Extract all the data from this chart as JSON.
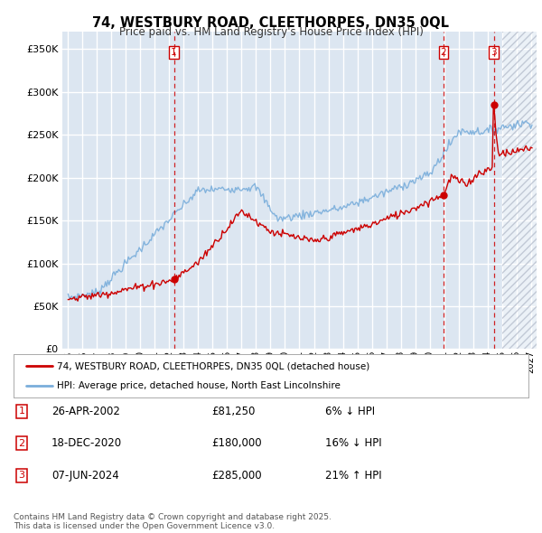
{
  "title_line1": "74, WESTBURY ROAD, CLEETHORPES, DN35 0QL",
  "title_line2": "Price paid vs. HM Land Registry's House Price Index (HPI)",
  "legend_label_red": "74, WESTBURY ROAD, CLEETHORPES, DN35 0QL (detached house)",
  "legend_label_blue": "HPI: Average price, detached house, North East Lincolnshire",
  "footer": "Contains HM Land Registry data © Crown copyright and database right 2025.\nThis data is licensed under the Open Government Licence v3.0.",
  "transactions": [
    {
      "num": 1,
      "date": "26-APR-2002",
      "price": 81250,
      "pct": "6%",
      "dir": "↓",
      "year": 2002.32
    },
    {
      "num": 2,
      "date": "18-DEC-2020",
      "price": 180000,
      "pct": "16%",
      "dir": "↓",
      "year": 2020.96
    },
    {
      "num": 3,
      "date": "07-JUN-2024",
      "price": 285000,
      "pct": "21%",
      "dir": "↑",
      "year": 2024.44
    }
  ],
  "ylim": [
    0,
    370000
  ],
  "xlim_start": 1994.6,
  "xlim_end": 2027.4,
  "plot_bg_color": "#dce6f1",
  "hatch_color": "#b0b8c8",
  "grid_color": "#ffffff",
  "red_line_color": "#cc0000",
  "blue_line_color": "#7aaedb",
  "vline_color": "#cc0000",
  "hatch_start": 2025.0,
  "yticks": [
    0,
    50000,
    100000,
    150000,
    200000,
    250000,
    300000,
    350000
  ]
}
